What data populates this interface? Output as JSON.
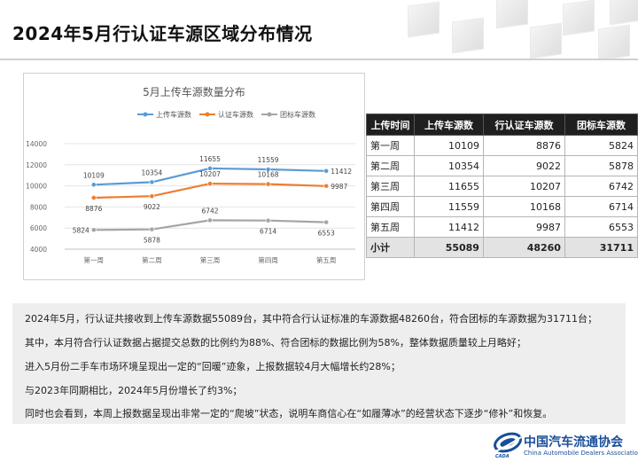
{
  "header": {
    "title": "2024年5月行认证车源区域分布情况"
  },
  "chart_data": {
    "type": "line",
    "title": "5月上传车源数量分布",
    "categories": [
      "第一周",
      "第二周",
      "第三周",
      "第四周",
      "第五周"
    ],
    "series": [
      {
        "name": "上传车源数",
        "color": "#5b9bd5",
        "values": [
          10109,
          10354,
          11655,
          11559,
          11412
        ]
      },
      {
        "name": "认证车源数",
        "color": "#ed7d31",
        "values": [
          8876,
          9022,
          10207,
          10168,
          9987
        ]
      },
      {
        "name": "团标车源数",
        "color": "#a5a5a5",
        "values": [
          5824,
          5878,
          6742,
          6714,
          6553
        ]
      }
    ],
    "ylim": [
      4000,
      14000
    ],
    "yticks": [
      4000,
      6000,
      8000,
      10000,
      12000,
      14000
    ],
    "grid": true,
    "legend": "top"
  },
  "table": {
    "headers": [
      "上传时间",
      "上传车源数",
      "行认证车源数",
      "团标车源数"
    ],
    "rows": [
      [
        "第一周",
        "10109",
        "8876",
        "5824"
      ],
      [
        "第二周",
        "10354",
        "9022",
        "5878"
      ],
      [
        "第三周",
        "11655",
        "10207",
        "6742"
      ],
      [
        "第四周",
        "11559",
        "10168",
        "6714"
      ],
      [
        "第五周",
        "11412",
        "9987",
        "6553"
      ]
    ],
    "total": [
      "小计",
      "55089",
      "48260",
      "31711"
    ]
  },
  "summary_text": [
    "2024年5月，行认证共接收到上传车源数据55089台，其中符合行认证标准的车源数据48260台，符合团标的车源数据为31711台；",
    "其中，本月符合行认证数据占据提交总数的比例约为88%、符合团标的数据比例为58%，整体数据质量较上月略好；",
    "进入5月份二手车市场环境呈现出一定的“回暖”迹象，上报数据较4月大幅增长约28%；",
    "与2023年同期相比，2024年5月份增长了约3%；",
    "同时也会看到，本周上报数据呈现出非常一定的“爬坡”状态，说明车商信心在“如履薄冰”的经营状态下逐步“修补”和恢复。"
  ],
  "logo": {
    "name": "中国汽车流通协会",
    "english": "China Automobile Dealers Association",
    "abbr": "CADA"
  }
}
